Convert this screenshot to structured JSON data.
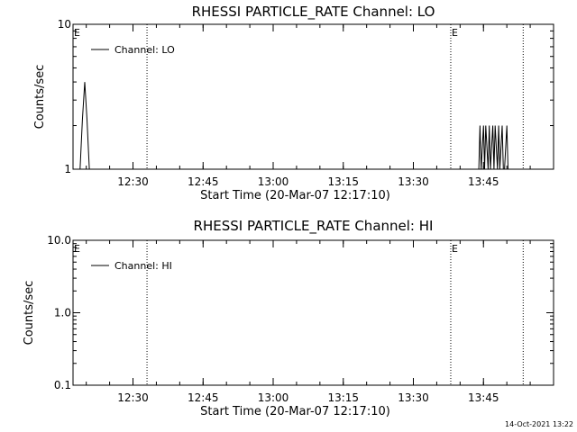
{
  "timestamp": "14-Oct-2021 13:22",
  "chart_data": [
    {
      "type": "line",
      "title": "RHESSI PARTICLE_RATE Channel: LO",
      "xlabel": "Start Time (20-Mar-07 12:17:10)",
      "ylabel": "Counts/sec",
      "yscale": "log",
      "xlim": [
        "12:17:10",
        "14:00:00"
      ],
      "ylim": [
        1,
        10
      ],
      "xticks": [
        "12:30",
        "12:45",
        "13:00",
        "13:15",
        "13:30",
        "13:45"
      ],
      "yticks": [
        {
          "value": 1,
          "label": "1"
        },
        {
          "value": 10,
          "label": "10"
        }
      ],
      "legend": {
        "placement": "top-left",
        "entries": [
          "Channel: LO"
        ]
      },
      "markers": [
        {
          "time": "12:17:10",
          "label": "E"
        },
        {
          "time": "13:38:00",
          "label": "E"
        }
      ],
      "event_lines": [
        "12:33:00",
        "13:38:00",
        "13:53:30"
      ],
      "series": [
        {
          "x": [
            "12:18:40",
            "12:19:10",
            "12:19:40",
            "12:20:10",
            "12:20:40",
            "13:44:00",
            "13:44:15",
            "13:44:30",
            "13:45:00",
            "13:45:15",
            "13:45:30",
            "13:46:00",
            "13:46:15",
            "13:46:30",
            "13:47:00",
            "13:47:15",
            "13:47:30",
            "13:48:00",
            "13:48:15",
            "13:48:30",
            "13:49:00",
            "13:49:15",
            "13:49:30",
            "13:50:00",
            "13:50:15"
          ],
          "y": [
            1,
            2.2,
            4.0,
            2.2,
            1,
            1,
            2,
            1,
            2,
            1,
            2,
            1,
            2,
            1,
            2,
            1,
            2,
            1,
            2,
            1,
            2,
            1,
            1,
            2,
            1
          ]
        }
      ]
    },
    {
      "type": "line",
      "title": "RHESSI PARTICLE_RATE Channel: HI",
      "xlabel": "Start Time (20-Mar-07 12:17:10)",
      "ylabel": "Counts/sec",
      "yscale": "log",
      "xlim": [
        "12:17:10",
        "14:00:00"
      ],
      "ylim": [
        0.1,
        10
      ],
      "xticks": [
        "12:30",
        "12:45",
        "13:00",
        "13:15",
        "13:30",
        "13:45"
      ],
      "yticks": [
        {
          "value": 0.1,
          "label": "0.1"
        },
        {
          "value": 1,
          "label": "1.0"
        },
        {
          "value": 10,
          "label": "10.0"
        }
      ],
      "legend": {
        "placement": "top-left",
        "entries": [
          "Channel: HI"
        ]
      },
      "markers": [
        {
          "time": "12:17:10",
          "label": "E"
        },
        {
          "time": "13:38:00",
          "label": "E"
        }
      ],
      "event_lines": [
        "12:33:00",
        "13:38:00",
        "13:53:30"
      ],
      "series": [
        {
          "x": [],
          "y": []
        }
      ]
    }
  ]
}
